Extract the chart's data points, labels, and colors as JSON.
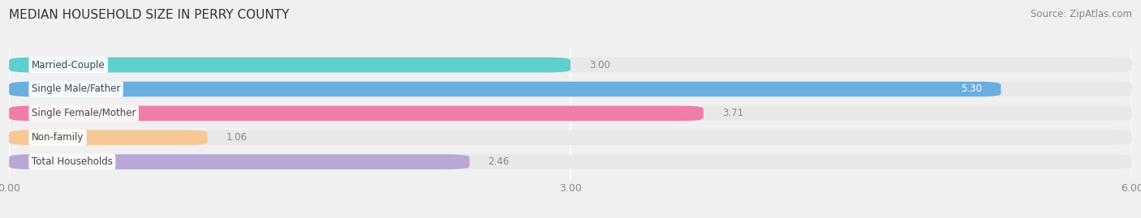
{
  "title": "MEDIAN HOUSEHOLD SIZE IN PERRY COUNTY",
  "source": "Source: ZipAtlas.com",
  "categories": [
    "Married-Couple",
    "Single Male/Father",
    "Single Female/Mother",
    "Non-family",
    "Total Households"
  ],
  "values": [
    3.0,
    5.3,
    3.71,
    1.06,
    2.46
  ],
  "bar_colors": [
    "#5ecece",
    "#6aaee0",
    "#f07ca8",
    "#f5c896",
    "#b8a8d8"
  ],
  "bar_bg_color": "#e8e8e8",
  "xlim": [
    0,
    6.0
  ],
  "xticks": [
    0.0,
    3.0,
    6.0
  ],
  "xtick_labels": [
    "0.00",
    "3.00",
    "6.00"
  ],
  "title_fontsize": 11,
  "source_fontsize": 8.5,
  "label_fontsize": 8.5,
  "value_fontsize": 8.5,
  "tick_fontsize": 9,
  "bar_height": 0.62,
  "bar_gap": 0.38,
  "background_color": "#f0f0f0"
}
